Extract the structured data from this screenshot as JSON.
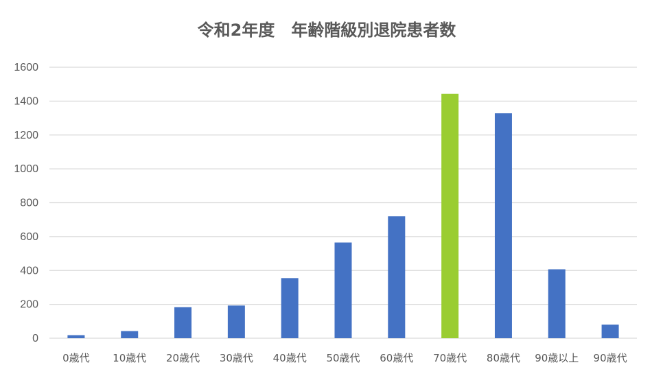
{
  "chart_data": {
    "type": "bar",
    "title": "令和2年度　年齢階級別退院患者数",
    "xlabel": "",
    "ylabel": "",
    "ylim": [
      0,
      1600
    ],
    "yticks": [
      "0",
      "200",
      "400",
      "600",
      "800",
      "1000",
      "1200",
      "1400",
      "1600"
    ],
    "grid": true,
    "categories": [
      "0歳代",
      "10歳代",
      "20歳代",
      "30歳代",
      "40歳代",
      "50歳代",
      "60歳代",
      "70歳代",
      "80歳代",
      "90歳以上",
      "90歳代"
    ],
    "values": [
      18,
      42,
      183,
      193,
      355,
      565,
      720,
      1443,
      1328,
      407,
      80
    ],
    "colors": {
      "default": "#4472c4",
      "highlight": "#9acd32",
      "highlight_category": "70歳代"
    }
  }
}
